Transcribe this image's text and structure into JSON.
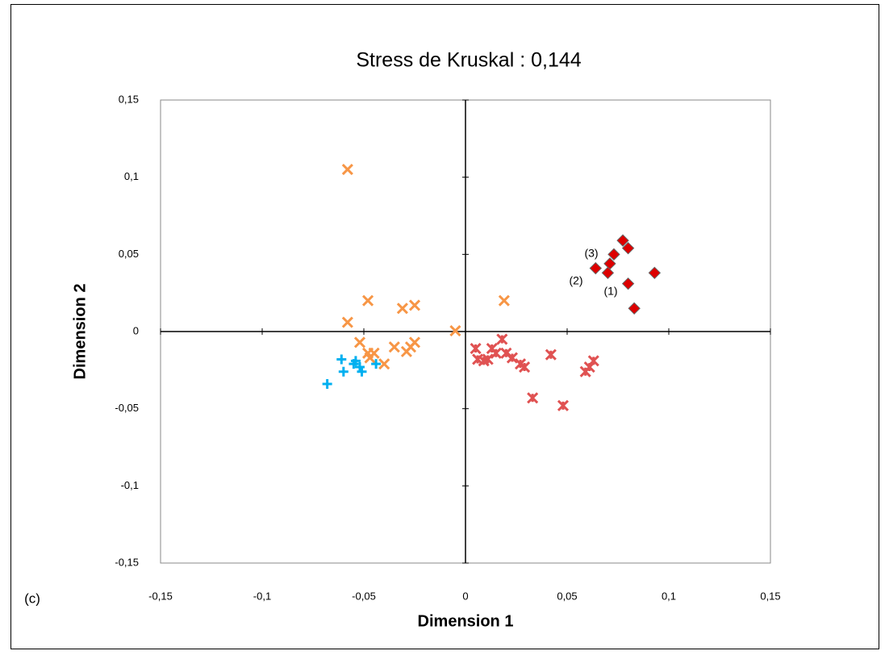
{
  "chart_data": {
    "type": "scatter",
    "title": "Stress de Kruskal : 0,144",
    "xlabel": "Dimension 1",
    "ylabel": "Dimension 2",
    "xlim": [
      -0.15,
      0.15
    ],
    "ylim": [
      -0.15,
      0.15
    ],
    "xticks": [
      {
        "value": -0.15,
        "label": "-0,15"
      },
      {
        "value": -0.1,
        "label": "-0,1"
      },
      {
        "value": -0.05,
        "label": "-0,05"
      },
      0,
      {
        "value": 0.05,
        "label": "0,05"
      },
      {
        "value": 0.1,
        "label": "0,1"
      },
      {
        "value": 0.15,
        "label": "0,15"
      }
    ],
    "yticks": [
      {
        "value": -0.15,
        "label": "-0,15"
      },
      {
        "value": -0.1,
        "label": "-0,1"
      },
      {
        "value": -0.05,
        "label": "-0,05"
      },
      0,
      {
        "value": 0.05,
        "label": "0,05"
      },
      {
        "value": 0.1,
        "label": "0,1"
      },
      {
        "value": 0.15,
        "label": "0,15"
      }
    ],
    "series": [
      {
        "color": "#f79646",
        "marker": "x",
        "x": [
          -0.058,
          -0.048,
          -0.058,
          -0.031,
          -0.025,
          -0.052,
          -0.048,
          -0.047,
          -0.035,
          -0.04,
          -0.027,
          -0.025,
          -0.029,
          -0.005,
          0.019,
          -0.045
        ],
        "values": [
          0.105,
          0.02,
          0.006,
          0.015,
          0.017,
          -0.007,
          -0.014,
          -0.017,
          -0.01,
          -0.021,
          -0.01,
          -0.007,
          -0.013,
          0.0005,
          0.02,
          -0.014
        ]
      },
      {
        "color": "#00b0f0",
        "marker": "plus",
        "x": [
          -0.061,
          -0.055,
          -0.052,
          -0.06,
          -0.051,
          -0.068,
          -0.044,
          -0.054
        ],
        "values": [
          -0.018,
          -0.021,
          -0.023,
          -0.026,
          -0.026,
          -0.034,
          -0.021,
          -0.019
        ]
      },
      {
        "color": "#e05252",
        "marker": "asterisk",
        "x": [
          0.005,
          0.006,
          0.009,
          0.013,
          0.015,
          0.018,
          0.02,
          0.023,
          0.027,
          0.029,
          0.033,
          0.042,
          0.048,
          0.059,
          0.061,
          0.063,
          0.011
        ],
        "values": [
          -0.011,
          -0.018,
          -0.019,
          -0.011,
          -0.014,
          -0.005,
          -0.014,
          -0.017,
          -0.021,
          -0.023,
          -0.043,
          -0.015,
          -0.048,
          -0.026,
          -0.023,
          -0.019,
          -0.018
        ]
      },
      {
        "color": "#dd0000",
        "marker": "diamond",
        "x": [
          0.0774,
          0.08,
          0.073,
          0.071,
          0.064,
          0.07,
          0.08,
          0.093,
          0.083
        ],
        "values": [
          0.059,
          0.054,
          0.05,
          0.044,
          0.041,
          0.038,
          0.031,
          0.038,
          0.015
        ]
      }
    ],
    "annotations": [
      "(3)",
      "(2)",
      "(1)",
      "(c)"
    ]
  }
}
